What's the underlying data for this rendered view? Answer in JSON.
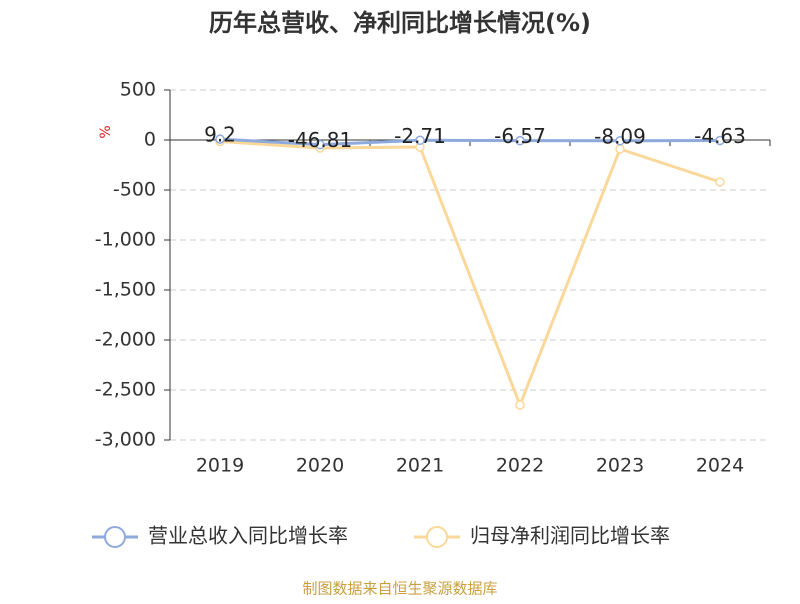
{
  "chart_data": {
    "type": "line",
    "title": "历年总营收、净利同比增长情况(%)",
    "y_unit": "%",
    "categories": [
      "2019",
      "2020",
      "2021",
      "2022",
      "2023",
      "2024"
    ],
    "series": [
      {
        "name": "营业总收入同比增长率",
        "color": "#8eaadc",
        "values": [
          9.2,
          -46.81,
          -2.71,
          -6.57,
          -8.09,
          -4.63
        ],
        "data_labels": true
      },
      {
        "name": "归母净利润同比增长率",
        "color": "#fbd89a",
        "values": [
          -15,
          -80,
          -70,
          -2650,
          -90,
          -420
        ],
        "data_labels": false
      }
    ],
    "ylim": [
      -3000,
      500
    ],
    "yticks": [
      500,
      0,
      -500,
      {
        "value": -1000,
        "label": "-1,000"
      },
      {
        "value": -1500,
        "label": "-1,500"
      },
      {
        "value": -2000,
        "label": "-2,000"
      },
      {
        "value": -2500,
        "label": "-2,500"
      },
      {
        "value": -3000,
        "label": "-3,000"
      }
    ],
    "grid": true,
    "footer": "制图数据来自恒生聚源数据库"
  }
}
